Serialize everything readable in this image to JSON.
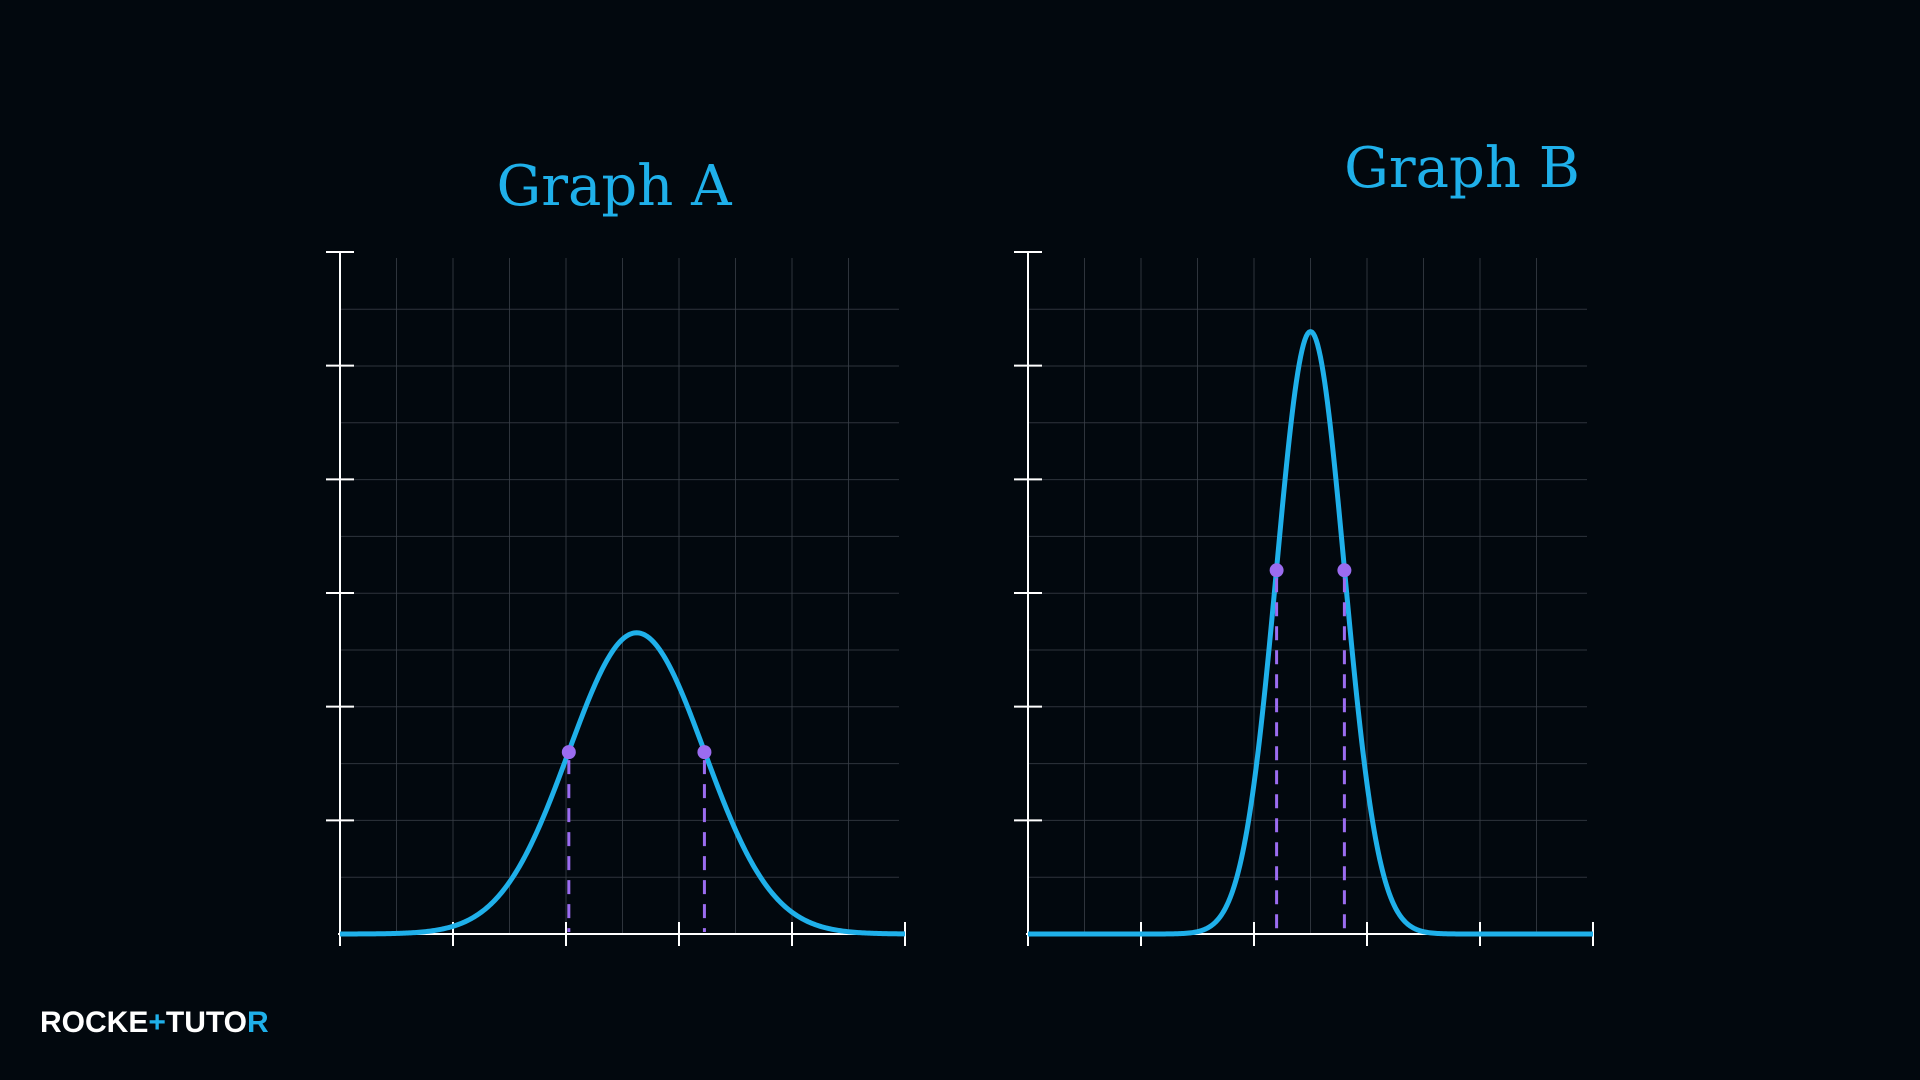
{
  "colors": {
    "background": "#02080e",
    "curve": "#1fb0ea",
    "marker": "#9b6cf0",
    "axis": "#ffffff",
    "grid": "#3a4048",
    "title": "#1fb0ea"
  },
  "logo": {
    "part1": "ROCKE",
    "plus": "+",
    "part2": "TUTO",
    "part3": "R"
  },
  "chart_data": [
    {
      "type": "line",
      "title": "Graph A",
      "xlabel": "",
      "ylabel": "",
      "xlim": [
        0,
        10
      ],
      "ylim": [
        0,
        6
      ],
      "grid": true,
      "series": [
        {
          "kind": "normal-curve",
          "mean": 5.25,
          "sd": 1.2,
          "peak": 2.65
        }
      ],
      "markers": [
        {
          "x": 4.05,
          "y": 1.6
        },
        {
          "x": 6.45,
          "y": 1.6
        }
      ]
    },
    {
      "type": "line",
      "title": "Graph B",
      "xlabel": "",
      "ylabel": "",
      "xlim": [
        0,
        10
      ],
      "ylim": [
        0,
        6
      ],
      "grid": true,
      "series": [
        {
          "kind": "normal-curve",
          "mean": 5.0,
          "sd": 0.6,
          "peak": 5.3
        }
      ],
      "markers": [
        {
          "x": 4.4,
          "y": 3.2
        },
        {
          "x": 5.6,
          "y": 3.2
        }
      ]
    }
  ]
}
